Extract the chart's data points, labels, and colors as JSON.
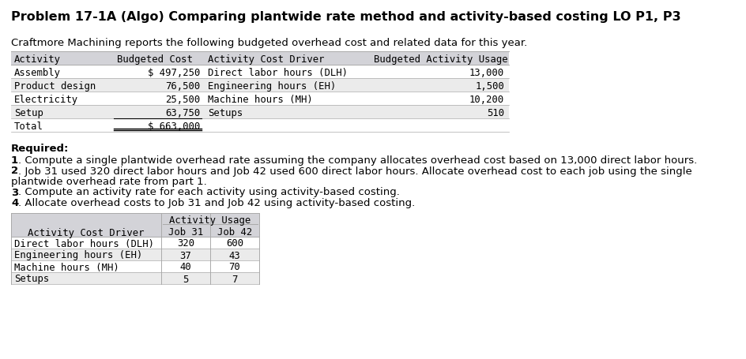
{
  "title": "Problem 17-1A (Algo) Comparing plantwide rate method and activity-based costing LO P1, P3",
  "intro": "Craftmore Machining reports the following budgeted overhead cost and related data for this year.",
  "table1_headers": [
    "Activity",
    "Budgeted Cost",
    "Activity Cost Driver",
    "Budgeted Activity Usage"
  ],
  "table1_rows": [
    [
      "Assembly",
      "$ 497,250",
      "Direct labor hours (DLH)",
      "13,000"
    ],
    [
      "Product design",
      "76,500",
      "Engineering hours (EH)",
      "1,500"
    ],
    [
      "Electricity",
      "25,500",
      "Machine hours (MH)",
      "10,200"
    ],
    [
      "Setup",
      "63,750",
      "Setups",
      "510"
    ],
    [
      "Total",
      "$ 663,000",
      "",
      ""
    ]
  ],
  "required_label": "Required:",
  "required_items": [
    [
      "1",
      ". Compute a single plantwide overhead rate assuming the company allocates overhead cost based on 13,000 direct labor hours."
    ],
    [
      "2",
      ". Job 31 used 320 direct labor hours and Job 42 used 600 direct labor hours. Allocate overhead cost to each job using the single\nplantwide overhead rate from part 1."
    ],
    [
      "3",
      ". Compute an activity rate for each activity using activity-based costing."
    ],
    [
      "4",
      ". Allocate overhead costs to Job 31 and Job 42 using activity-based costing."
    ]
  ],
  "table2_header_row2": [
    "Activity Cost Driver",
    "Job 31",
    "Job 42"
  ],
  "table2_rows": [
    [
      "Direct labor hours (DLH)",
      "320",
      "600"
    ],
    [
      "Engineering hours (EH)",
      "37",
      "43"
    ],
    [
      "Machine hours (MH)",
      "40",
      "70"
    ],
    [
      "Setups",
      "5",
      "7"
    ]
  ],
  "bg_color": "#ffffff",
  "table_header_bg": "#d3d3d8",
  "table_row_bg0": "#ffffff",
  "table_row_bg1": "#ebebeb",
  "table_border_color": "#aaaaaa",
  "mono_font": "DejaVu Sans Mono",
  "sans_font": "DejaVu Sans",
  "title_fontsize": 11.5,
  "body_fontsize": 9.5,
  "table_fontsize": 8.8
}
